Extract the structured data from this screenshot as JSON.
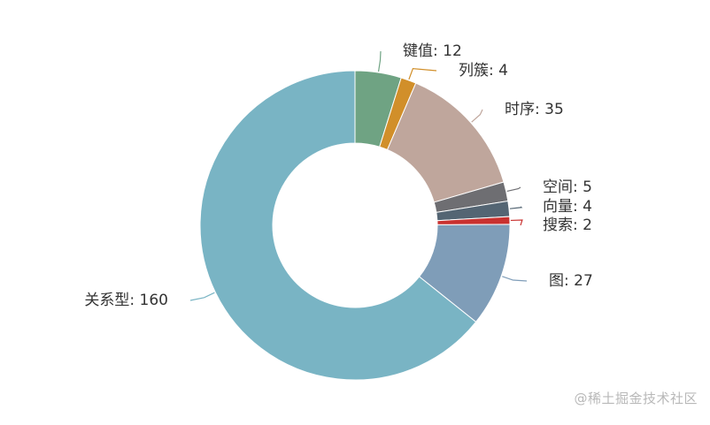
{
  "chart_data": {
    "type": "pie",
    "variant": "donut",
    "slices": [
      {
        "label": "键值",
        "value": 12,
        "color": "#6fa383"
      },
      {
        "label": "列簇",
        "value": 4,
        "color": "#d18f2a"
      },
      {
        "label": "时序",
        "value": 35,
        "color": "#bfa69c"
      },
      {
        "label": "空间",
        "value": 5,
        "color": "#6e6e72"
      },
      {
        "label": "向量",
        "value": 4,
        "color": "#546573"
      },
      {
        "label": "搜索",
        "value": 2,
        "color": "#c9312f"
      },
      {
        "label": "图",
        "value": 27,
        "color": "#7f9db8"
      },
      {
        "label": "关系型",
        "value": 160,
        "color": "#79b4c4"
      }
    ],
    "label_format": "{name}: {value}",
    "legend": "none"
  },
  "watermark": "@稀土掘金技术社区"
}
